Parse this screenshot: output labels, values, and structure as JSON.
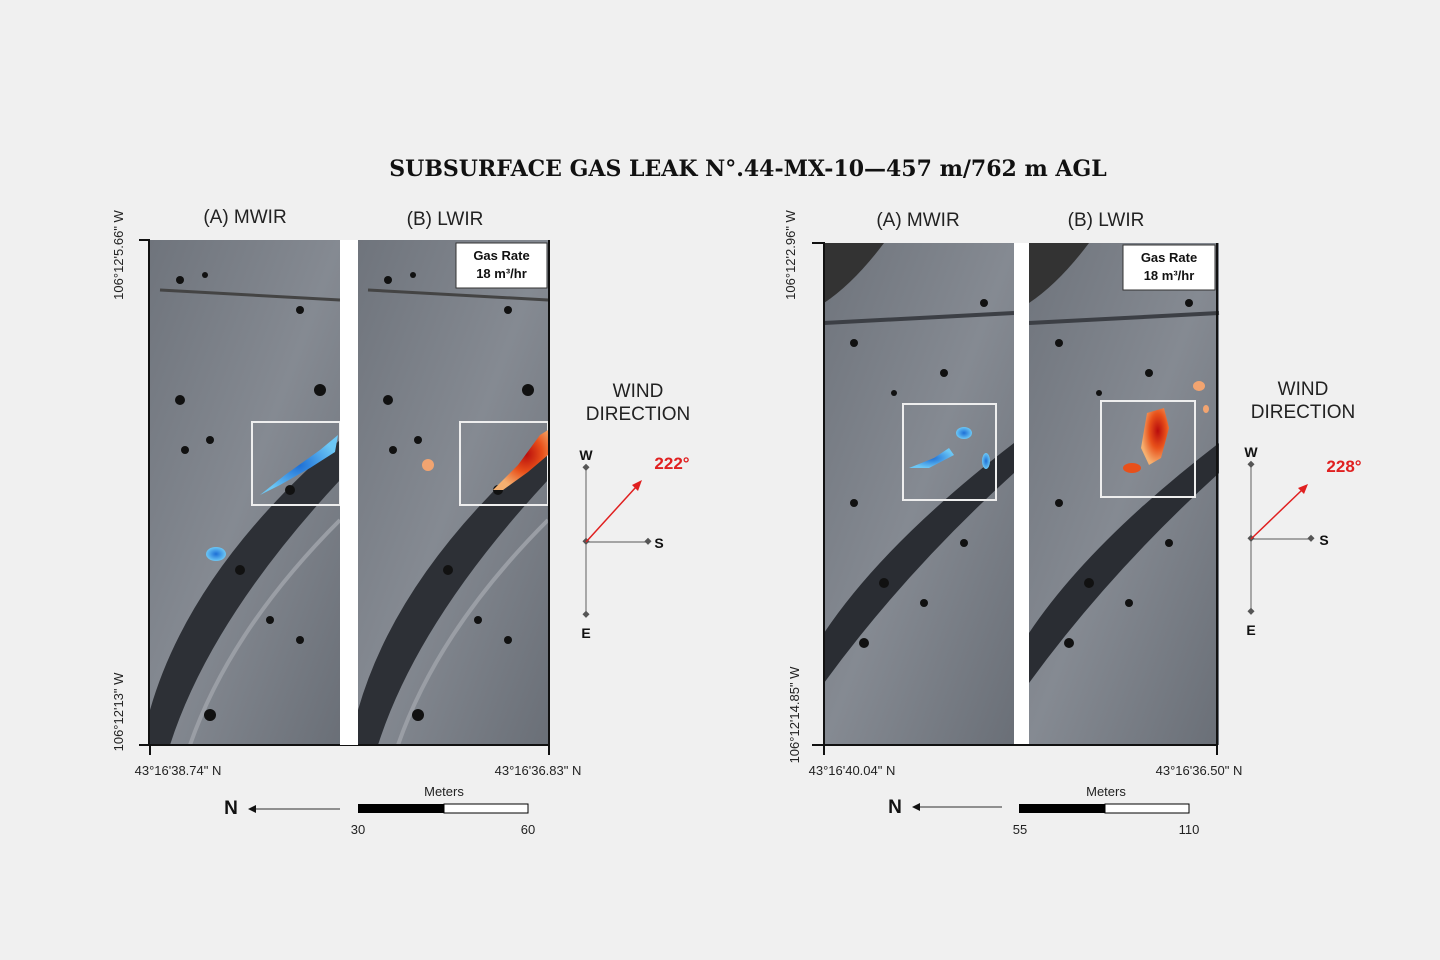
{
  "title": "SUBSURFACE GAS LEAK N°.44-MX-10—457 m/762 m AGL",
  "panels": [
    {
      "label_a": "(A) MWIR",
      "label_b": "(B) LWIR",
      "gas_rate_label": "Gas Rate",
      "gas_rate_value": "18 m³/hr",
      "lon_top": "106°12'5.66\" W",
      "lon_bottom": "106°12'13\" W",
      "lat_left": "43°16'38.74\" N",
      "lat_right": "43°16'36.83\" N",
      "wind_title_1": "WIND",
      "wind_title_2": "DIRECTION",
      "wind_degrees": "222°",
      "wind_deg_value": 222,
      "compass": {
        "w": "W",
        "s": "S",
        "e": "E"
      },
      "north": "N",
      "scale_title": "Meters",
      "scale_min": "30",
      "scale_max": "60"
    },
    {
      "label_a": "(A) MWIR",
      "label_b": "(B) LWIR",
      "gas_rate_label": "Gas Rate",
      "gas_rate_value": "18 m³/hr",
      "lon_top": "106°12'2.96\" W",
      "lon_bottom": "106°12'14.85\" W",
      "lat_left": "43°16'40.04\" N",
      "lat_right": "43°16'36.50\" N",
      "wind_title_1": "WIND",
      "wind_title_2": "DIRECTION",
      "wind_degrees": "228°",
      "wind_deg_value": 228,
      "compass": {
        "w": "W",
        "s": "S",
        "e": "E"
      },
      "north": "N",
      "scale_title": "Meters",
      "scale_min": "55",
      "scale_max": "110"
    }
  ],
  "colors": {
    "background": "#f0f0f0",
    "wind_arrow": "#e02020",
    "mwir_plume": "#2b9be8",
    "lwir_plume": "#e8501a"
  }
}
